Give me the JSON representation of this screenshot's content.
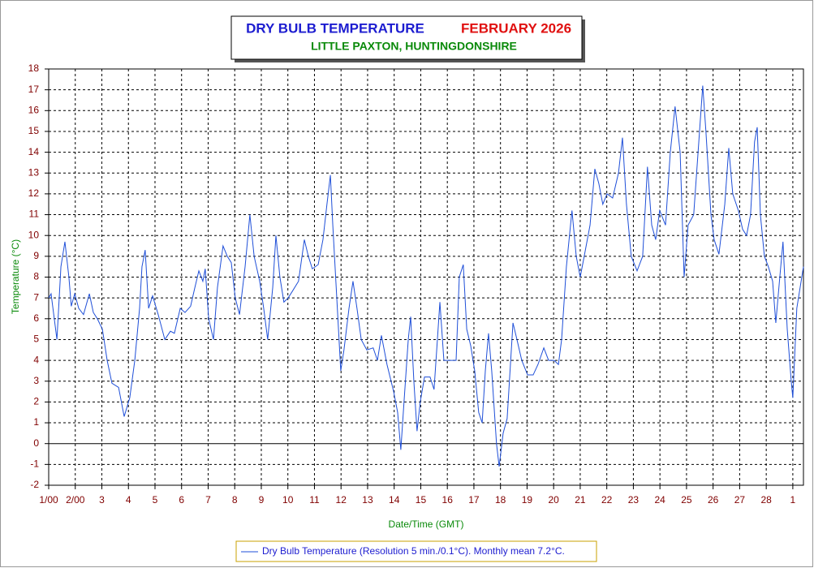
{
  "chart_data": {
    "type": "line",
    "title": "DRY BULB TEMPERATURE",
    "title_period": "FEBRUARY 2026",
    "subtitle": "LITTLE PAXTON, HUNTINGDONSHIRE",
    "y_label": "Temperature (°C)",
    "x_label": "Date/Time (GMT)",
    "xlim": [
      0,
      28.4
    ],
    "ylim": [
      -2,
      18
    ],
    "yticks": [
      -2,
      -1,
      0,
      1,
      2,
      3,
      4,
      5,
      6,
      7,
      8,
      9,
      10,
      11,
      12,
      13,
      14,
      15,
      16,
      17,
      18
    ],
    "xticks": [
      {
        "value": 0,
        "label": "1/00"
      },
      {
        "value": 1,
        "label": "2/00"
      },
      {
        "value": 2,
        "label": "3"
      },
      {
        "value": 3,
        "label": "4"
      },
      {
        "value": 4,
        "label": "5"
      },
      {
        "value": 5,
        "label": "6"
      },
      {
        "value": 6,
        "label": "7"
      },
      {
        "value": 7,
        "label": "8"
      },
      {
        "value": 8,
        "label": "9"
      },
      {
        "value": 9,
        "label": "10"
      },
      {
        "value": 10,
        "label": "11"
      },
      {
        "value": 11,
        "label": "12"
      },
      {
        "value": 12,
        "label": "13"
      },
      {
        "value": 13,
        "label": "14"
      },
      {
        "value": 14,
        "label": "15"
      },
      {
        "value": 15,
        "label": "16"
      },
      {
        "value": 16,
        "label": "17"
      },
      {
        "value": 17,
        "label": "18"
      },
      {
        "value": 18,
        "label": "19"
      },
      {
        "value": 19,
        "label": "20"
      },
      {
        "value": 20,
        "label": "21"
      },
      {
        "value": 21,
        "label": "22"
      },
      {
        "value": 22,
        "label": "23"
      },
      {
        "value": 23,
        "label": "24"
      },
      {
        "value": 24,
        "label": "25"
      },
      {
        "value": 25,
        "label": "26"
      },
      {
        "value": 26,
        "label": "27"
      },
      {
        "value": 27,
        "label": "28"
      },
      {
        "value": 28,
        "label": "1"
      }
    ],
    "grid": true,
    "x": [
      0,
      0.09,
      0.31,
      0.46,
      0.61,
      0.76,
      0.85,
      0.98,
      1.13,
      1.31,
      1.53,
      1.68,
      1.83,
      2.02,
      2.2,
      2.38,
      2.63,
      2.84,
      3.05,
      3.24,
      3.42,
      3.51,
      3.63,
      3.76,
      3.91,
      4.12,
      4.37,
      4.58,
      4.73,
      4.95,
      5.13,
      5.34,
      5.5,
      5.65,
      5.8,
      5.89,
      6.02,
      6.2,
      6.35,
      6.56,
      6.72,
      6.87,
      7.02,
      7.18,
      7.39,
      7.57,
      7.73,
      7.94,
      8.09,
      8.24,
      8.43,
      8.55,
      8.7,
      8.85,
      9.01,
      9.16,
      9.4,
      9.62,
      9.77,
      9.92,
      10.14,
      10.32,
      10.47,
      10.6,
      10.69,
      10.84,
      10.99,
      11.11,
      11.3,
      11.45,
      11.6,
      11.76,
      11.97,
      12.21,
      12.37,
      12.52,
      12.73,
      12.98,
      13.13,
      13.25,
      13.37,
      13.53,
      13.62,
      13.74,
      13.86,
      13.98,
      14.14,
      14.35,
      14.5,
      14.6,
      14.72,
      14.87,
      15.11,
      15.33,
      15.45,
      15.6,
      15.73,
      15.88,
      16.03,
      16.18,
      16.31,
      16.43,
      16.55,
      16.67,
      16.85,
      16.95,
      17.1,
      17.25,
      17.47,
      17.62,
      17.8,
      18.02,
      18.23,
      18.41,
      18.63,
      18.81,
      19.02,
      19.18,
      19.3,
      19.48,
      19.69,
      19.85,
      20.0,
      20.15,
      20.37,
      20.55,
      20.7,
      20.85,
      21.01,
      21.22,
      21.44,
      21.59,
      21.74,
      21.92,
      22.14,
      22.35,
      22.53,
      22.69,
      22.84,
      22.99,
      23.21,
      23.39,
      23.57,
      23.76,
      23.91,
      24.06,
      24.27,
      24.49,
      24.61,
      24.73,
      24.92,
      25.04,
      25.22,
      25.44,
      25.59,
      25.74,
      25.95,
      26.11,
      26.26,
      26.41,
      26.56,
      26.66,
      26.78,
      26.93,
      27.08,
      27.24,
      27.36,
      27.51,
      27.63,
      27.79,
      27.94,
      28.0,
      28.15,
      28.4
    ],
    "series": [
      {
        "name": "Dry Bulb Temperature (Resolution 5 min./0.1°C). Monthly mean 7.2°C.",
        "color": "#1f4fd8",
        "values": [
          7.0,
          7.2,
          5.0,
          8.5,
          9.7,
          8.0,
          6.6,
          7.2,
          6.5,
          6.2,
          7.2,
          6.3,
          6.0,
          5.5,
          4.0,
          2.9,
          2.7,
          1.3,
          2.2,
          4.0,
          6.5,
          8.5,
          9.3,
          6.5,
          7.1,
          6.2,
          5.0,
          5.4,
          5.3,
          6.5,
          6.3,
          6.6,
          7.5,
          8.3,
          7.8,
          8.4,
          6.0,
          5.0,
          7.5,
          9.5,
          9.0,
          8.7,
          7.0,
          6.2,
          8.5,
          11.0,
          9.0,
          7.8,
          6.5,
          5.0,
          7.5,
          10.0,
          8.0,
          6.8,
          7.0,
          7.3,
          7.8,
          9.8,
          9.0,
          8.4,
          8.6,
          9.8,
          11.5,
          12.9,
          10.5,
          7.0,
          3.5,
          4.5,
          6.5,
          7.8,
          6.5,
          5.0,
          4.5,
          4.6,
          4.0,
          5.2,
          3.8,
          2.5,
          1.5,
          -0.3,
          2.0,
          5.0,
          6.1,
          3.0,
          0.6,
          2.0,
          3.2,
          3.2,
          2.6,
          4.5,
          6.8,
          4.0,
          4.0,
          4.0,
          8.0,
          8.6,
          5.5,
          4.7,
          3.5,
          1.5,
          1.0,
          3.5,
          5.3,
          3.5,
          0.0,
          -1.1,
          0.5,
          1.2,
          5.8,
          5.0,
          4.0,
          3.3,
          3.3,
          3.8,
          4.6,
          4.0,
          4.0,
          3.8,
          5.0,
          8.5,
          11.2,
          9.0,
          8.0,
          9.0,
          10.5,
          13.2,
          12.5,
          11.5,
          12.0,
          11.8,
          13.0,
          14.7,
          11.5,
          9.0,
          8.3,
          9.0,
          13.3,
          10.5,
          9.8,
          11.2,
          10.5,
          14.0,
          16.2,
          14.0,
          8.0,
          10.5,
          11.0,
          15.0,
          17.2,
          15.0,
          11.0,
          9.8,
          9.1,
          11.5,
          14.2,
          12.0,
          11.2,
          10.3,
          10.0,
          11.0,
          14.5,
          15.2,
          11.0,
          9.0,
          8.5,
          7.8,
          5.8,
          8.0,
          9.7,
          5.5,
          3.0,
          2.2,
          6.5,
          8.5
        ]
      }
    ]
  }
}
